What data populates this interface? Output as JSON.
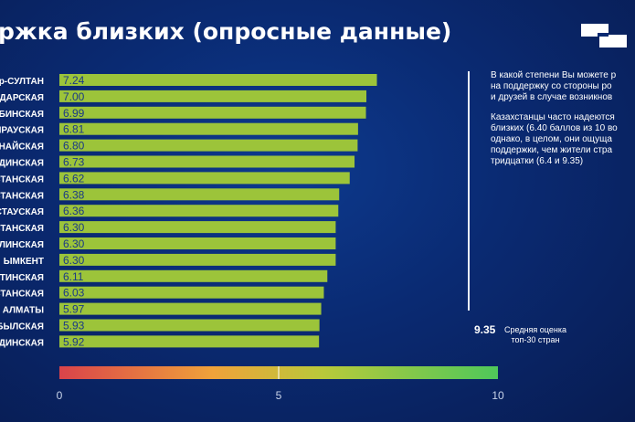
{
  "title": "ржка близких (опросные данные)",
  "logo_icon": "logo-icon",
  "notes": {
    "question": [
      "В какой степени Вы можете р",
      "на поддержку со стороны ро",
      "и друзей в случае возникнов"
    ],
    "finding": [
      "Казахстанцы часто надеются",
      "близких (6.40 баллов из 10 во",
      "однако, в целом, они ощуща",
      "поддержки, чем жители стра",
      "тридцатки (6.4 и 9.35)"
    ]
  },
  "benchmark": {
    "value": "9.35",
    "label": [
      "Средняя оценка",
      "топ-30 стран"
    ]
  },
  "colors": {
    "bar": "#9cc43a",
    "gradient": [
      "#d9434a",
      "#f0a23a",
      "#b9c93a",
      "#4fc85a"
    ]
  },
  "chart_data": {
    "type": "bar",
    "orientation": "horizontal",
    "title": "ржка близких (опросные данные)",
    "categories": [
      "р-СУЛТАН",
      "ОДАРСКАЯ",
      "БИНСКАЯ",
      "ЫРАУСКАЯ",
      "НАЙСКАЯ",
      "ДИНСКАЯ",
      "СТАНСКАЯ",
      "СТАНСКАЯ",
      "СТАУСКАЯ",
      "СТАНСКАЯ",
      "ЛИНСКАЯ",
      "ЫМКЕНТ",
      "АТИНСКАЯ",
      "СТАНСКАЯ",
      "АЛМАТЫ",
      "БЫЛСКАЯ",
      "ДИНСКАЯ"
    ],
    "values": [
      7.24,
      7.0,
      6.99,
      6.81,
      6.8,
      6.73,
      6.62,
      6.38,
      6.36,
      6.3,
      6.3,
      6.3,
      6.11,
      6.03,
      5.97,
      5.93,
      5.92
    ],
    "value_labels": [
      "7.24",
      "7.00",
      "6.99",
      "6.81",
      "6.80",
      "6.73",
      "6.62",
      "6.38",
      "6.36",
      "6.30",
      "6.30",
      "6.30",
      "6.11",
      "6.03",
      "5.97",
      "5.93",
      "5.92"
    ],
    "xlim": [
      0,
      10
    ],
    "scale_ticks": [
      "0",
      "5",
      "10"
    ],
    "grid": false,
    "legend": "none"
  }
}
